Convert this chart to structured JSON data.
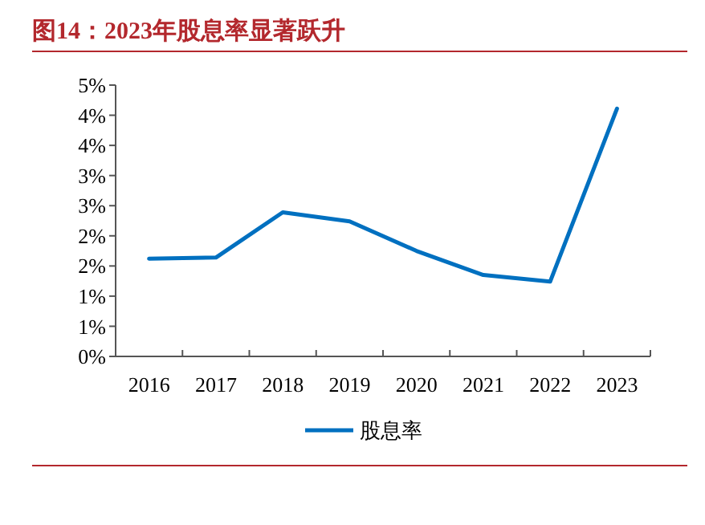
{
  "chart_data": {
    "type": "line",
    "title": "图14：2023年股息率显著跃升",
    "categories": [
      "2016",
      "2017",
      "2018",
      "2019",
      "2020",
      "2021",
      "2022",
      "2023"
    ],
    "series": [
      {
        "name": "股息率",
        "color": "#0070c0",
        "values": [
          1.62,
          1.64,
          2.39,
          2.24,
          1.75,
          1.35,
          1.24,
          4.11
        ]
      }
    ],
    "ylim": [
      0,
      4.5
    ],
    "yticks": [
      {
        "value": 0,
        "label": "0%"
      },
      {
        "value": 0.5,
        "label": "1%"
      },
      {
        "value": 1,
        "label": "1%"
      },
      {
        "value": 1.5,
        "label": "2%"
      },
      {
        "value": 2,
        "label": "2%"
      },
      {
        "value": 2.5,
        "label": "3%"
      },
      {
        "value": 3,
        "label": "3%"
      },
      {
        "value": 3.5,
        "label": "4%"
      },
      {
        "value": 4,
        "label": "4%"
      },
      {
        "value": 4.5,
        "label": "5%"
      }
    ],
    "grid": false,
    "legend": "bottom",
    "marker": "none",
    "line_style": "solid"
  }
}
